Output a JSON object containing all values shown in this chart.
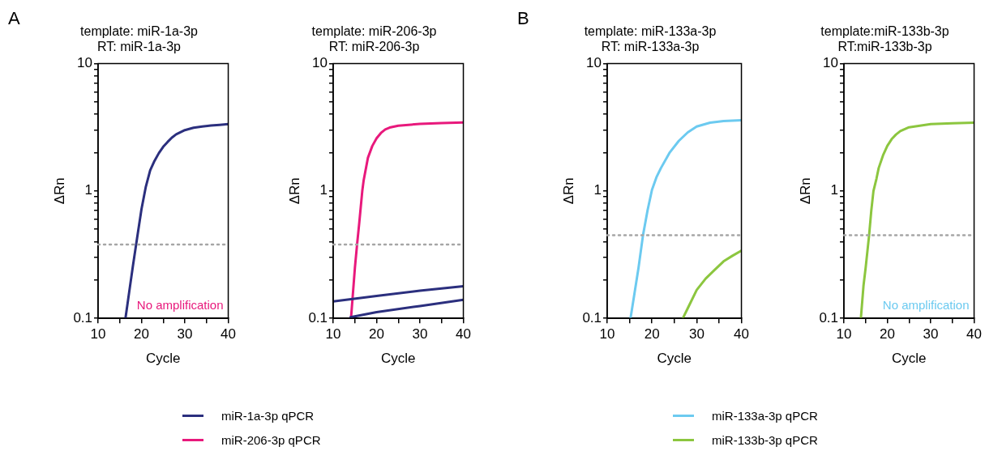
{
  "chart_data": [
    {
      "type": "line",
      "title": "template: miR-1a-3p\nRT: miR-1a-3p",
      "xlabel": "Cycle",
      "ylabel": "ΔRn",
      "log": "y",
      "grid": false,
      "legend": false,
      "marker": "none",
      "line_style": "solid",
      "xlim": [
        10,
        40
      ],
      "ylim": [
        0.1,
        10
      ],
      "xticks": [
        10,
        {
          "value": 15,
          "label": null
        },
        20,
        {
          "value": 25,
          "label": null
        },
        30,
        {
          "value": 35,
          "label": null
        },
        40
      ],
      "yticks": [
        0.1,
        {
          "value": 0.2,
          "label": null
        },
        {
          "value": 0.3,
          "label": null
        },
        {
          "value": 0.4,
          "label": null
        },
        {
          "value": 0.5,
          "label": null
        },
        {
          "value": 0.6,
          "label": null
        },
        {
          "value": 0.7,
          "label": null
        },
        {
          "value": 0.8,
          "label": null
        },
        {
          "value": 0.9,
          "label": null
        },
        1,
        {
          "value": 2,
          "label": null
        },
        {
          "value": 3,
          "label": null
        },
        {
          "value": 4,
          "label": null
        },
        {
          "value": 5,
          "label": null
        },
        {
          "value": 6,
          "label": null
        },
        {
          "value": 7,
          "label": null
        },
        {
          "value": 8,
          "label": null
        },
        {
          "value": 9,
          "label": null
        },
        10
      ],
      "ref_lines": [
        {
          "axis": "y",
          "value": 0.38,
          "color": "#a6a6a6",
          "line_style": "dotted"
        }
      ],
      "annotations": [
        "A",
        "No amplification"
      ],
      "series": [
        {
          "color": "#2b2f7e",
          "x": [
            16.3,
            17,
            18,
            19,
            20,
            21,
            22,
            23,
            24,
            25,
            26,
            27,
            28,
            30,
            32,
            34,
            36,
            38,
            40
          ],
          "values": [
            0.1,
            0.147,
            0.255,
            0.43,
            0.72,
            1.08,
            1.45,
            1.72,
            1.98,
            2.22,
            2.42,
            2.62,
            2.78,
            3.0,
            3.13,
            3.2,
            3.26,
            3.3,
            3.34
          ]
        }
      ]
    },
    {
      "type": "line",
      "title": "template: miR-206-3p\nRT: miR-206-3p",
      "xlabel": "Cycle",
      "ylabel": "ΔRn",
      "log": "y",
      "grid": false,
      "legend": "bottom",
      "marker": "none",
      "line_style": "solid",
      "xlim": [
        10,
        40
      ],
      "ylim": [
        0.1,
        10
      ],
      "xticks": [
        10,
        {
          "value": 15,
          "label": null
        },
        20,
        {
          "value": 25,
          "label": null
        },
        30,
        {
          "value": 35,
          "label": null
        },
        40
      ],
      "yticks": [
        0.1,
        {
          "value": 0.2,
          "label": null
        },
        {
          "value": 0.3,
          "label": null
        },
        {
          "value": 0.4,
          "label": null
        },
        {
          "value": 0.5,
          "label": null
        },
        {
          "value": 0.6,
          "label": null
        },
        {
          "value": 0.7,
          "label": null
        },
        {
          "value": 0.8,
          "label": null
        },
        {
          "value": 0.9,
          "label": null
        },
        1,
        {
          "value": 2,
          "label": null
        },
        {
          "value": 3,
          "label": null
        },
        {
          "value": 4,
          "label": null
        },
        {
          "value": 5,
          "label": null
        },
        {
          "value": 6,
          "label": null
        },
        {
          "value": 7,
          "label": null
        },
        {
          "value": 8,
          "label": null
        },
        {
          "value": 9,
          "label": null
        },
        10
      ],
      "ref_lines": [
        {
          "axis": "y",
          "value": 0.38,
          "color": "#a6a6a6",
          "line_style": "dotted"
        }
      ],
      "series": [
        {
          "name": "miR-1a-3p qPCR",
          "color": "#2b2f7e",
          "x": [
            10,
            20,
            30,
            40
          ],
          "values": [
            0.136,
            0.15,
            0.165,
            0.179
          ]
        },
        {
          "color": "#2b2f7e",
          "x": [
            14,
            20,
            30,
            40
          ],
          "values": [
            0.102,
            0.112,
            0.125,
            0.14
          ]
        },
        {
          "name": "miR-206-3p qPCR",
          "color": "#e8197c",
          "x": [
            14.1,
            14.5,
            15,
            15.5,
            16,
            16.7,
            17,
            18,
            19,
            20,
            21,
            22,
            23,
            25,
            30,
            35,
            40
          ],
          "values": [
            0.1,
            0.15,
            0.25,
            0.38,
            0.56,
            1.0,
            1.2,
            1.82,
            2.25,
            2.59,
            2.85,
            3.04,
            3.14,
            3.25,
            3.36,
            3.41,
            3.44
          ]
        }
      ]
    },
    {
      "type": "line",
      "title": "template: miR-133a-3p\nRT: miR-133a-3p",
      "xlabel": "Cycle",
      "ylabel": "ΔRn",
      "log": "y",
      "grid": false,
      "legend": "bottom",
      "marker": "none",
      "line_style": "solid",
      "xlim": [
        10,
        40
      ],
      "ylim": [
        0.1,
        10
      ],
      "xticks": [
        10,
        {
          "value": 15,
          "label": null
        },
        20,
        {
          "value": 25,
          "label": null
        },
        30,
        {
          "value": 35,
          "label": null
        },
        40
      ],
      "yticks": [
        0.1,
        {
          "value": 0.2,
          "label": null
        },
        {
          "value": 0.3,
          "label": null
        },
        {
          "value": 0.4,
          "label": null
        },
        {
          "value": 0.5,
          "label": null
        },
        {
          "value": 0.6,
          "label": null
        },
        {
          "value": 0.7,
          "label": null
        },
        {
          "value": 0.8,
          "label": null
        },
        {
          "value": 0.9,
          "label": null
        },
        1,
        {
          "value": 2,
          "label": null
        },
        {
          "value": 3,
          "label": null
        },
        {
          "value": 4,
          "label": null
        },
        {
          "value": 5,
          "label": null
        },
        {
          "value": 6,
          "label": null
        },
        {
          "value": 7,
          "label": null
        },
        {
          "value": 8,
          "label": null
        },
        {
          "value": 9,
          "label": null
        },
        10
      ],
      "ref_lines": [
        {
          "axis": "y",
          "value": 0.45,
          "color": "#a6a6a6",
          "line_style": "dotted"
        }
      ],
      "annotations": [
        "B"
      ],
      "series": [
        {
          "name": "miR-133a-3p qPCR",
          "color": "#6ccaf0",
          "x": [
            15.2,
            16,
            17,
            18,
            19,
            20,
            21,
            22,
            24,
            26,
            28,
            30,
            33,
            36,
            40
          ],
          "values": [
            0.1,
            0.15,
            0.25,
            0.45,
            0.7,
            1.02,
            1.28,
            1.51,
            2.01,
            2.47,
            2.88,
            3.2,
            3.43,
            3.53,
            3.58
          ]
        },
        {
          "name": "miR-133b-3p qPCR",
          "color": "#8cc63f",
          "x": [
            26.9,
            28,
            30,
            32,
            34,
            36,
            38,
            40
          ],
          "values": [
            0.1,
            0.12,
            0.167,
            0.205,
            0.24,
            0.28,
            0.31,
            0.34
          ]
        }
      ]
    },
    {
      "type": "line",
      "title": "template:miR-133b-3p\nRT:miR-133b-3p",
      "xlabel": "Cycle",
      "ylabel": "ΔRn",
      "log": "y",
      "grid": false,
      "legend": false,
      "marker": "none",
      "line_style": "solid",
      "xlim": [
        10,
        40
      ],
      "ylim": [
        0.1,
        10
      ],
      "xticks": [
        10,
        {
          "value": 15,
          "label": null
        },
        20,
        {
          "value": 25,
          "label": null
        },
        30,
        {
          "value": 35,
          "label": null
        },
        40
      ],
      "yticks": [
        0.1,
        {
          "value": 0.2,
          "label": null
        },
        {
          "value": 0.3,
          "label": null
        },
        {
          "value": 0.4,
          "label": null
        },
        {
          "value": 0.5,
          "label": null
        },
        {
          "value": 0.6,
          "label": null
        },
        {
          "value": 0.7,
          "label": null
        },
        {
          "value": 0.8,
          "label": null
        },
        {
          "value": 0.9,
          "label": null
        },
        1,
        {
          "value": 2,
          "label": null
        },
        {
          "value": 3,
          "label": null
        },
        {
          "value": 4,
          "label": null
        },
        {
          "value": 5,
          "label": null
        },
        {
          "value": 6,
          "label": null
        },
        {
          "value": 7,
          "label": null
        },
        {
          "value": 8,
          "label": null
        },
        {
          "value": 9,
          "label": null
        },
        10
      ],
      "ref_lines": [
        {
          "axis": "y",
          "value": 0.45,
          "color": "#a6a6a6",
          "line_style": "dotted"
        }
      ],
      "annotations": [
        "No amplification"
      ],
      "series": [
        {
          "color": "#8cc63f",
          "x": [
            13.9,
            14.5,
            15,
            15.8,
            16.3,
            16.8,
            17.5,
            18,
            19,
            20,
            21,
            22,
            23,
            25,
            30,
            35,
            40
          ],
          "values": [
            0.1,
            0.18,
            0.25,
            0.45,
            0.7,
            1.0,
            1.25,
            1.51,
            1.9,
            2.26,
            2.55,
            2.77,
            2.95,
            3.16,
            3.35,
            3.39,
            3.43
          ]
        }
      ]
    }
  ]
}
